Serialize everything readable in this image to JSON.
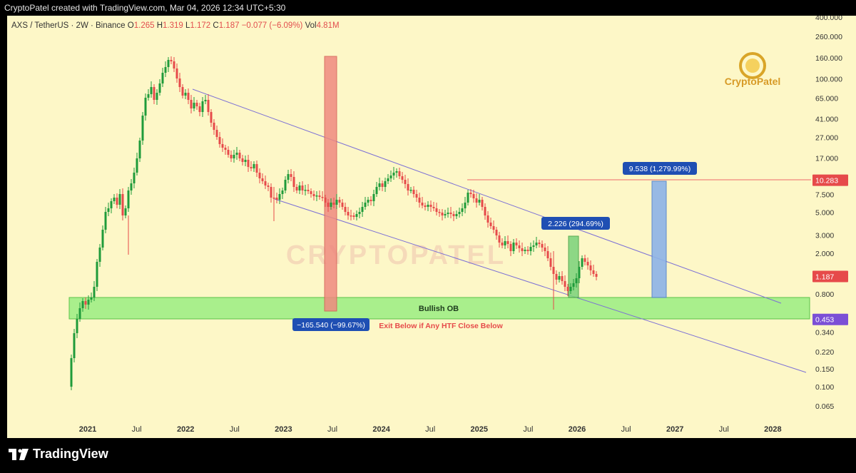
{
  "header": {
    "credit": "CryptoPatel created with TradingView.com, Mar 04, 2026 12:34 UTC+5:30"
  },
  "symbol": {
    "name": "AXS / TetherUS · 2W · Binance",
    "o_label": "O",
    "o": "1.265",
    "h_label": "H",
    "h": "1.319",
    "l_label": "L",
    "l": "1.172",
    "c_label": "C",
    "c": "1.187",
    "change": "−0.077 (−6.09%)",
    "vol_label": "Vol",
    "vol": "4.81M"
  },
  "watermark": {
    "logo_text": "CryptoPatel",
    "center_text": "CRYPTOPATEL"
  },
  "price_axis": {
    "ticks": [
      "400.000",
      "260.000",
      "160.000",
      "100.000",
      "65.000",
      "41.000",
      "27.000",
      "17.000",
      "10.283",
      "7.500",
      "5.000",
      "3.000",
      "2.000",
      "1.187",
      "0.800",
      "0.453",
      "0.340",
      "0.220",
      "0.150",
      "0.100",
      "0.065"
    ],
    "tag_resistance": "10.283",
    "tag_current": "1.187",
    "tag_ob": "0.453"
  },
  "time_axis": {
    "ticks": [
      "2021",
      "Jul",
      "2022",
      "Jul",
      "2023",
      "Jul",
      "2024",
      "Jul",
      "2025",
      "Jul",
      "2026",
      "Jul",
      "2027",
      "Jul",
      "2028"
    ]
  },
  "annotations": {
    "drop_measure": "−165.540 (−99.67%)",
    "measure_small": "2.226 (294.69%)",
    "measure_big": "9.538 (1,279.99%)",
    "ob_label": "Bullish OB",
    "exit_note": "Exit Below if Any HTF Close Below"
  },
  "colors": {
    "background": "#fdf7c7",
    "bull": "#1f9b3a",
    "bear": "#e64a4a",
    "channel": "#7b6fd6",
    "ob_fill": "#a9ef8c",
    "measure_red": "#ef8a80",
    "measure_green": "#7ad27a",
    "measure_blue": "#8db3e8",
    "label_blue": "#1f4fb3",
    "resistance": "#f06a6a"
  },
  "footer": {
    "brand": "TradingView"
  }
}
